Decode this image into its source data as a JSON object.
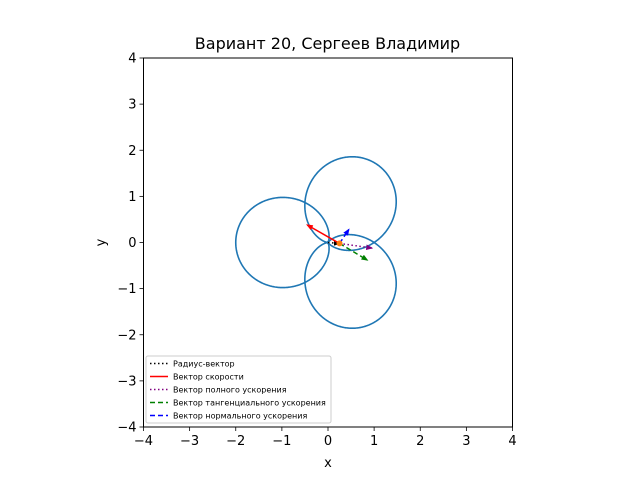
{
  "chart_data": {
    "type": "line",
    "title": "Вариант 20, Сергеев Владимир",
    "xlabel": "x",
    "ylabel": "y",
    "xlim": [
      -4,
      4
    ],
    "ylim": [
      -4,
      4
    ],
    "xticks": [
      -4,
      -3,
      -2,
      -1,
      0,
      1,
      2,
      3,
      4
    ],
    "yticks": [
      -4,
      -3,
      -2,
      -1,
      0,
      1,
      2,
      3,
      4
    ],
    "grid": false,
    "legend_position": "lower-left",
    "trajectory": {
      "color": "#1f77b4",
      "equation": "r = 1 + sin(1.5·φ)",
      "phi_range": [
        0,
        12.566
      ],
      "line": "solid"
    },
    "point": {
      "x": 0.25,
      "y": -0.02,
      "color": "#ff7f0e"
    },
    "vectors": [
      {
        "name": "Радиус-вектор",
        "color": "#000000",
        "style": "dotted",
        "from": [
          0,
          0
        ],
        "to": [
          0.25,
          -0.02
        ]
      },
      {
        "name": "Вектор скорости",
        "color": "#ff0000",
        "style": "solid",
        "from": [
          0.25,
          -0.02
        ],
        "to": [
          -0.45,
          0.38
        ]
      },
      {
        "name": "Вектор полного ускорения",
        "color": "#800080",
        "style": "dotted",
        "from": [
          0.25,
          -0.02
        ],
        "to": [
          0.95,
          -0.12
        ]
      },
      {
        "name": "Вектор тангенциального ускорения",
        "color": "#008000",
        "style": "dashed",
        "from": [
          0.25,
          -0.02
        ],
        "to": [
          0.85,
          -0.38
        ]
      },
      {
        "name": "Вектор нормального ускорения",
        "color": "#0000ff",
        "style": "dashed",
        "from": [
          0.25,
          -0.02
        ],
        "to": [
          0.45,
          0.28
        ]
      }
    ]
  }
}
